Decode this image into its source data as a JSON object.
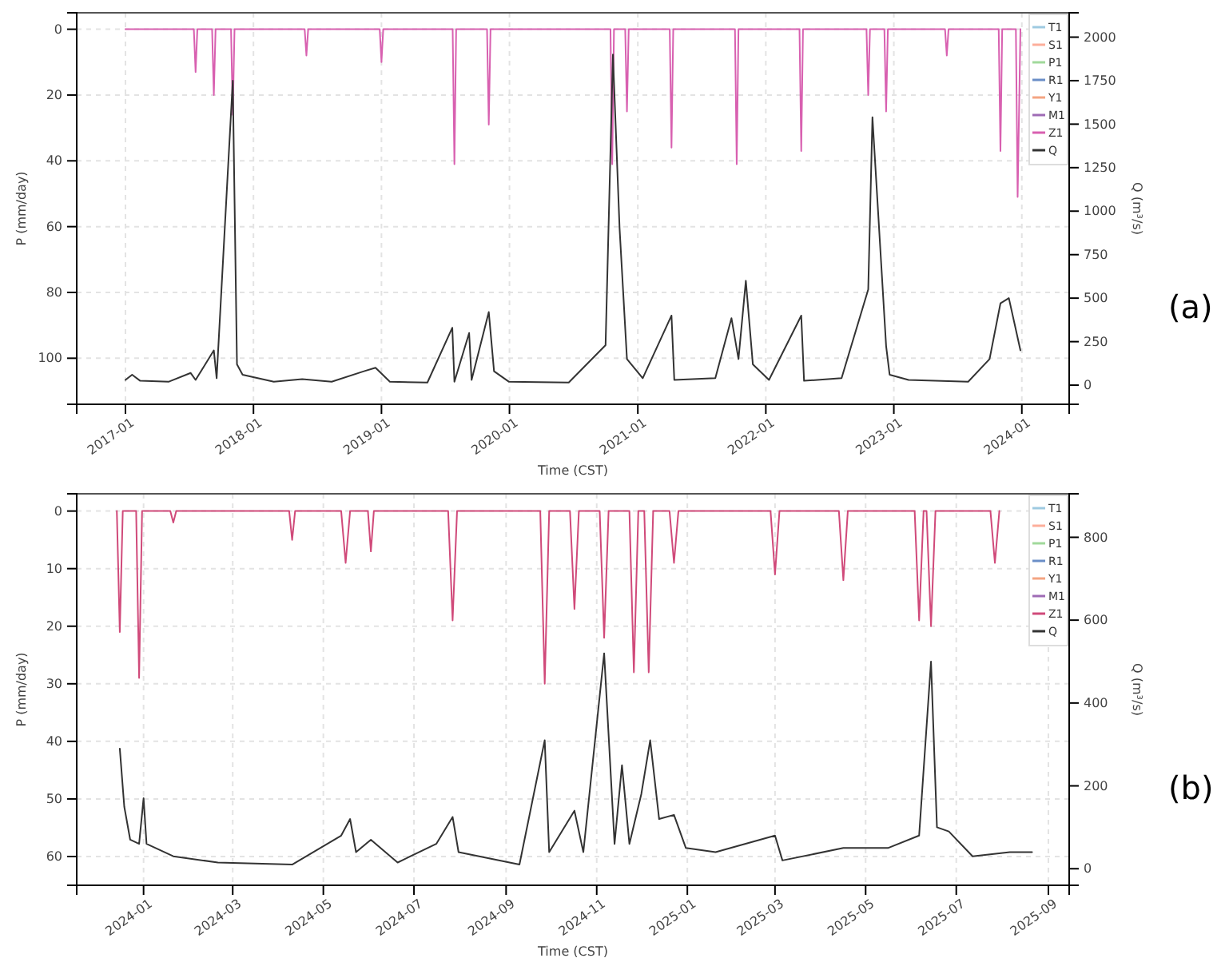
{
  "chart_data": [
    {
      "type": "line",
      "xlabel": "Time (CST)",
      "ylabel": "P (mm/day)",
      "y2label": "Q (m³/s)",
      "legend": "top right",
      "grid": true,
      "marker": "none",
      "line_style": "solid",
      "xlim": [
        "2016-08-15",
        "2024-05-15"
      ],
      "xticks": [
        {
          "value": "2017-01-01",
          "label": "2017-01"
        },
        {
          "value": "2018-01-01",
          "label": "2018-01"
        },
        {
          "value": "2019-01-01",
          "label": "2019-01"
        },
        {
          "value": "2020-01-01",
          "label": "2020-01"
        },
        {
          "value": "2021-01-01",
          "label": "2021-01"
        },
        {
          "value": "2022-01-01",
          "label": "2022-01"
        },
        {
          "value": "2023-01-01",
          "label": "2023-01"
        },
        {
          "value": "2024-01-01",
          "label": "2024-01"
        }
      ],
      "ylim": [
        114,
        -5
      ],
      "yticks": [
        0,
        20,
        40,
        60,
        80,
        100
      ],
      "y2lim": [
        -110,
        2140
      ],
      "y2ticks": [
        0,
        250,
        500,
        750,
        1000,
        1250,
        1500,
        1750,
        2000
      ],
      "annotations": [
        "(a)"
      ],
      "series": [
        {
          "name": "T1",
          "color": "#9ecae1",
          "axis": "y"
        },
        {
          "name": "S1",
          "color": "#fdae9b",
          "axis": "y"
        },
        {
          "name": "P1",
          "color": "#a1d99b",
          "axis": "y"
        },
        {
          "name": "R1",
          "color": "#6a8ec7",
          "axis": "y"
        },
        {
          "name": "Y1",
          "color": "#f4a582",
          "axis": "y"
        },
        {
          "name": "M1",
          "color": "#9e6bb5",
          "axis": "y"
        },
        {
          "name": "Z1",
          "color": "#d860b0",
          "axis": "y",
          "x": [
            "2017-01-01",
            "2017-07-15",
            "2017-07-20",
            "2017-07-25",
            "2017-09-05",
            "2017-09-10",
            "2017-09-15",
            "2017-10-29",
            "2017-11-03",
            "2017-11-08",
            "2018-05-27",
            "2018-06-01",
            "2018-06-06",
            "2018-12-27",
            "2019-01-01",
            "2019-01-06",
            "2019-07-23",
            "2019-07-28",
            "2019-08-02",
            "2019-10-29",
            "2019-11-03",
            "2019-11-08",
            "2020-10-15",
            "2020-10-20",
            "2020-10-25",
            "2020-11-26",
            "2020-12-01",
            "2020-12-06",
            "2021-04-02",
            "2021-04-07",
            "2021-04-12",
            "2021-10-05",
            "2021-10-10",
            "2021-10-15",
            "2022-04-07",
            "2022-04-12",
            "2022-04-17",
            "2022-10-15",
            "2022-10-20",
            "2022-10-25",
            "2022-12-05",
            "2022-12-10",
            "2022-12-15",
            "2023-05-27",
            "2023-06-01",
            "2023-06-06",
            "2023-10-27",
            "2023-11-01",
            "2023-11-06",
            "2023-12-15",
            "2023-12-20",
            "2023-12-28"
          ],
          "values": [
            0,
            0,
            13,
            0,
            0,
            20,
            0,
            0,
            26,
            0,
            0,
            8,
            0,
            0,
            10,
            0,
            0,
            41,
            0,
            0,
            29,
            0,
            0,
            41,
            0,
            0,
            25,
            0,
            0,
            36,
            0,
            0,
            41,
            0,
            0,
            37,
            0,
            0,
            20,
            0,
            0,
            25,
            0,
            0,
            8,
            0,
            0,
            37,
            0,
            0,
            51,
            0
          ]
        },
        {
          "name": "Q",
          "color": "#333333",
          "axis": "y2",
          "x": [
            "2017-01-01",
            "2017-01-20",
            "2017-02-12",
            "2017-05-05",
            "2017-07-06",
            "2017-07-20",
            "2017-09-10",
            "2017-09-18",
            "2017-11-03",
            "2017-11-15",
            "2017-12-01",
            "2018-02-28",
            "2018-05-20",
            "2018-08-12",
            "2018-11-12",
            "2018-12-15",
            "2019-01-25",
            "2019-05-12",
            "2019-07-22",
            "2019-07-28",
            "2019-09-08",
            "2019-09-15",
            "2019-11-03",
            "2019-11-18",
            "2019-12-30",
            "2020-06-18",
            "2020-10-01",
            "2020-10-22",
            "2020-11-10",
            "2020-12-01",
            "2021-01-15",
            "2021-04-07",
            "2021-04-15",
            "2021-08-10",
            "2021-09-25",
            "2021-10-15",
            "2021-11-05",
            "2021-11-25",
            "2022-01-10",
            "2022-04-12",
            "2022-04-20",
            "2022-08-05",
            "2022-10-20",
            "2022-11-01",
            "2022-12-10",
            "2022-12-20",
            "2023-02-12",
            "2023-08-01",
            "2023-10-01",
            "2023-11-01",
            "2023-11-25",
            "2023-12-28"
          ],
          "values": [
            30,
            60,
            25,
            20,
            70,
            30,
            200,
            40,
            1750,
            120,
            60,
            20,
            35,
            20,
            80,
            100,
            20,
            15,
            330,
            20,
            300,
            30,
            420,
            80,
            20,
            15,
            230,
            1900,
            900,
            150,
            40,
            400,
            30,
            40,
            385,
            150,
            600,
            120,
            30,
            400,
            25,
            40,
            550,
            1540,
            225,
            60,
            30,
            20,
            150,
            470,
            500,
            200
          ]
        }
      ]
    },
    {
      "type": "line",
      "xlabel": "Time (CST)",
      "ylabel": "P (mm/day)",
      "y2label": "Q (m³/s)",
      "legend": "top right",
      "grid": true,
      "marker": "none",
      "line_style": "solid",
      "xlim": [
        "2023-11-17",
        "2025-09-15"
      ],
      "xticks": [
        {
          "value": "2024-01-01",
          "label": "2024-01"
        },
        {
          "value": "2024-03-01",
          "label": "2024-03"
        },
        {
          "value": "2024-05-01",
          "label": "2024-05"
        },
        {
          "value": "2024-07-01",
          "label": "2024-07"
        },
        {
          "value": "2024-09-01",
          "label": "2024-09"
        },
        {
          "value": "2024-11-01",
          "label": "2024-11"
        },
        {
          "value": "2025-01-01",
          "label": "2025-01"
        },
        {
          "value": "2025-03-01",
          "label": "2025-03"
        },
        {
          "value": "2025-05-01",
          "label": "2025-05"
        },
        {
          "value": "2025-07-01",
          "label": "2025-07"
        },
        {
          "value": "2025-09-01",
          "label": "2025-09"
        }
      ],
      "ylim": [
        65,
        -3
      ],
      "yticks": [
        0,
        10,
        20,
        30,
        40,
        50,
        60
      ],
      "y2lim": [
        -40,
        905
      ],
      "y2ticks": [
        0,
        200,
        400,
        600,
        800
      ],
      "annotations": [
        "(b)"
      ],
      "series": [
        {
          "name": "T1",
          "color": "#9ecae1",
          "axis": "y"
        },
        {
          "name": "S1",
          "color": "#fdae9b",
          "axis": "y"
        },
        {
          "name": "P1",
          "color": "#a1d99b",
          "axis": "y"
        },
        {
          "name": "R1",
          "color": "#6a8ec7",
          "axis": "y"
        },
        {
          "name": "Y1",
          "color": "#f4a582",
          "axis": "y"
        },
        {
          "name": "M1",
          "color": "#9e6bb5",
          "axis": "y"
        },
        {
          "name": "Z1",
          "color": "#d04a7a",
          "axis": "y",
          "x": [
            "2023-12-14",
            "2023-12-16",
            "2023-12-18",
            "2023-12-27",
            "2023-12-29",
            "2023-12-31",
            "2024-01-19",
            "2024-01-21",
            "2024-01-23",
            "2024-04-08",
            "2024-04-10",
            "2024-04-12",
            "2024-05-13",
            "2024-05-16",
            "2024-05-19",
            "2024-05-31",
            "2024-06-02",
            "2024-06-04",
            "2024-07-24",
            "2024-07-27",
            "2024-07-30",
            "2024-09-24",
            "2024-09-27",
            "2024-09-30",
            "2024-10-14",
            "2024-10-17",
            "2024-10-20",
            "2024-11-03",
            "2024-11-06",
            "2024-11-09",
            "2024-11-23",
            "2024-11-26",
            "2024-11-29",
            "2024-12-03",
            "2024-12-06",
            "2024-12-09",
            "2024-12-20",
            "2024-12-23",
            "2024-12-26",
            "2025-02-26",
            "2025-03-01",
            "2025-03-04",
            "2025-04-13",
            "2025-04-16",
            "2025-04-19",
            "2025-06-03",
            "2025-06-06",
            "2025-06-09",
            "2025-06-11",
            "2025-06-14",
            "2025-06-17",
            "2025-07-24",
            "2025-07-27",
            "2025-07-30"
          ],
          "values": [
            0,
            21,
            0,
            0,
            29,
            0,
            0,
            2,
            0,
            0,
            5,
            0,
            0,
            9,
            0,
            0,
            7,
            0,
            0,
            19,
            0,
            0,
            30,
            0,
            0,
            17,
            0,
            0,
            22,
            0,
            0,
            28,
            0,
            0,
            28,
            0,
            0,
            9,
            0,
            0,
            11,
            0,
            0,
            12,
            0,
            0,
            19,
            0,
            0,
            20,
            0,
            0,
            9,
            0
          ]
        },
        {
          "name": "Q",
          "color": "#333333",
          "axis": "y2",
          "x": [
            "2023-12-16",
            "2023-12-19",
            "2023-12-23",
            "2023-12-29",
            "2024-01-01",
            "2024-01-03",
            "2024-01-21",
            "2024-02-20",
            "2024-04-10",
            "2024-05-13",
            "2024-05-19",
            "2024-05-23",
            "2024-06-02",
            "2024-06-20",
            "2024-07-16",
            "2024-07-27",
            "2024-07-31",
            "2024-09-10",
            "2024-09-27",
            "2024-09-30",
            "2024-10-17",
            "2024-10-23",
            "2024-11-06",
            "2024-11-13",
            "2024-11-18",
            "2024-11-23",
            "2024-12-01",
            "2024-12-07",
            "2024-12-13",
            "2024-12-23",
            "2024-12-31",
            "2025-01-20",
            "2025-03-01",
            "2025-03-06",
            "2025-04-16",
            "2025-05-16",
            "2025-06-06",
            "2025-06-14",
            "2025-06-18",
            "2025-06-26",
            "2025-07-12",
            "2025-08-06",
            "2025-08-21"
          ],
          "values": [
            290,
            150,
            70,
            60,
            170,
            60,
            30,
            15,
            10,
            80,
            120,
            40,
            70,
            15,
            60,
            125,
            40,
            10,
            310,
            40,
            140,
            40,
            520,
            60,
            250,
            60,
            180,
            310,
            120,
            130,
            50,
            40,
            80,
            20,
            50,
            50,
            80,
            500,
            100,
            90,
            30,
            40,
            40
          ]
        }
      ]
    }
  ]
}
